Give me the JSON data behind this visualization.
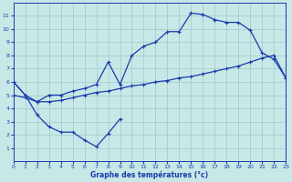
{
  "xlabel": "Graphe des températures (°c)",
  "xlim": [
    0,
    23
  ],
  "ylim": [
    0,
    12
  ],
  "xticks": [
    0,
    1,
    2,
    3,
    4,
    5,
    6,
    7,
    8,
    9,
    10,
    11,
    12,
    13,
    14,
    15,
    16,
    17,
    18,
    19,
    20,
    21,
    22,
    23
  ],
  "yticks": [
    1,
    2,
    3,
    4,
    5,
    6,
    7,
    8,
    9,
    10,
    11
  ],
  "bg": "#c8e8e8",
  "grid_color": "#a0c8c8",
  "lc": "#1a3aaa",
  "series": [
    {
      "x": [
        0,
        1,
        2,
        3,
        4,
        5,
        6,
        7,
        8,
        9
      ],
      "y": [
        6,
        5.0,
        3.5,
        2.6,
        2.2,
        2.2,
        1.6,
        1.1,
        2.1,
        3.2
      ]
    },
    {
      "x": [
        0,
        1,
        2,
        3,
        4,
        5,
        6,
        7,
        8,
        9,
        10,
        11,
        12,
        13,
        14,
        15,
        16,
        17,
        18,
        19,
        20,
        21,
        22,
        23
      ],
      "y": [
        6.0,
        5.0,
        4.5,
        5.0,
        5.0,
        5.3,
        5.5,
        5.8,
        7.5,
        5.8,
        8.0,
        8.7,
        9.0,
        9.8,
        9.8,
        11.2,
        11.1,
        10.7,
        null,
        null,
        null,
        null,
        null,
        null
      ]
    },
    {
      "x": [
        17,
        18,
        19,
        20,
        21,
        22,
        23
      ],
      "y": [
        10.7,
        10.5,
        10.5,
        9.9,
        8.2,
        7.7,
        6.3
      ]
    },
    {
      "x": [
        0,
        1,
        2,
        3,
        4,
        5,
        6,
        7,
        8,
        9,
        10,
        11,
        12,
        13,
        14,
        15,
        16,
        17,
        18,
        19,
        20,
        21,
        22,
        23
      ],
      "y": [
        5.0,
        4.8,
        4.5,
        4.5,
        4.6,
        4.8,
        5.0,
        5.2,
        5.3,
        5.5,
        5.7,
        5.8,
        6.0,
        6.1,
        6.3,
        6.4,
        6.6,
        6.8,
        7.0,
        7.2,
        7.5,
        7.8,
        8.0,
        6.3
      ]
    }
  ]
}
